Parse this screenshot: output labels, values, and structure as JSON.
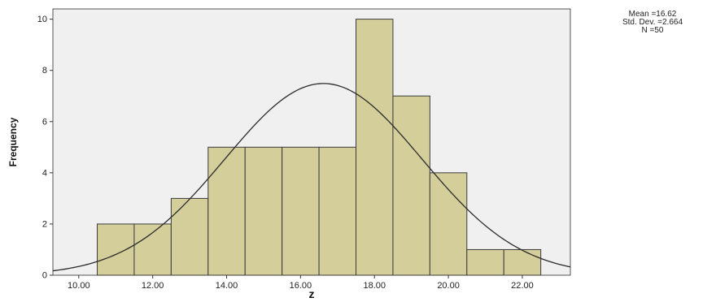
{
  "chart_data": {
    "type": "bar",
    "subtype": "histogram",
    "title": "",
    "xlabel": "z",
    "ylabel": "Frequency",
    "bins": [
      {
        "start": 10.5,
        "end": 11.5,
        "count": 2
      },
      {
        "start": 11.5,
        "end": 12.5,
        "count": 2
      },
      {
        "start": 12.5,
        "end": 13.5,
        "count": 3
      },
      {
        "start": 13.5,
        "end": 14.5,
        "count": 5
      },
      {
        "start": 14.5,
        "end": 15.5,
        "count": 5
      },
      {
        "start": 15.5,
        "end": 16.5,
        "count": 5
      },
      {
        "start": 16.5,
        "end": 17.5,
        "count": 5
      },
      {
        "start": 17.5,
        "end": 18.5,
        "count": 10
      },
      {
        "start": 18.5,
        "end": 19.5,
        "count": 7
      },
      {
        "start": 19.5,
        "end": 20.5,
        "count": 4
      },
      {
        "start": 20.5,
        "end": 21.5,
        "count": 1
      },
      {
        "start": 21.5,
        "end": 22.5,
        "count": 1
      }
    ],
    "xlim": [
      9.3,
      23.3
    ],
    "ylim": [
      0,
      10.4
    ],
    "xticks": [
      "10.00",
      "12.00",
      "14.00",
      "16.00",
      "18.00",
      "20.00",
      "22.00"
    ],
    "xtick_values": [
      10,
      12,
      14,
      16,
      18,
      20,
      22
    ],
    "yticks": [
      "0",
      "2",
      "4",
      "6",
      "8",
      "10"
    ],
    "ytick_values": [
      0,
      2,
      4,
      6,
      8,
      10
    ],
    "normal_curve": {
      "mean": 16.62,
      "sd": 2.664,
      "n": 50,
      "bin_width": 1
    },
    "stats": {
      "mean_label": "Mean =16.62",
      "sd_label": "Std. Dev. =2.664",
      "n_label": "N =50"
    },
    "grid": false,
    "colors": {
      "bar_fill": "#d3ce9a",
      "bar_stroke": "#3b3b3b",
      "plot_background": "#f0f0f0",
      "curve": "#2b2b2b"
    }
  }
}
